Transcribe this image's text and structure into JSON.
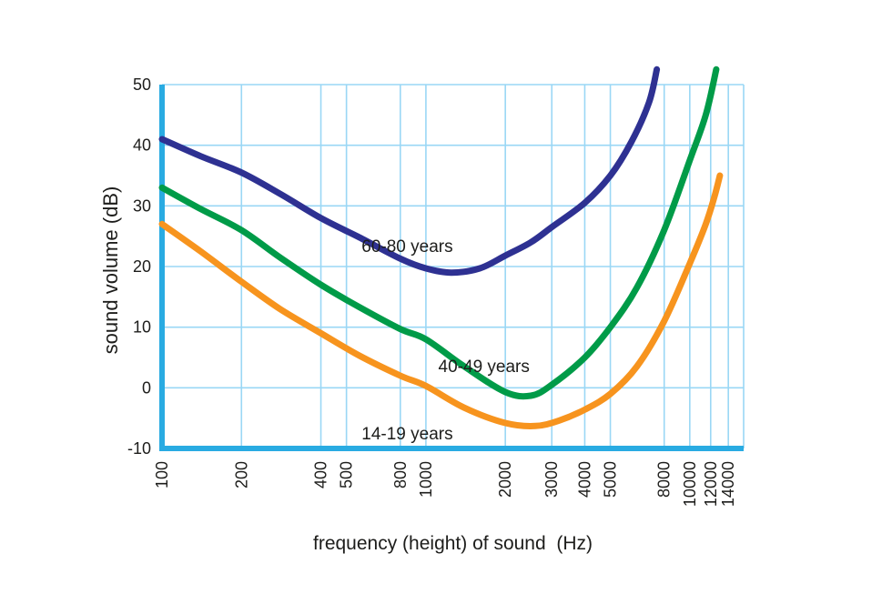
{
  "chart_data": {
    "type": "line",
    "title": "",
    "xlabel": "frequency (height) of sound  (Hz)",
    "ylabel": "sound volume (dB)",
    "x_scale": "log",
    "xlim": [
      100,
      16000
    ],
    "ylim": [
      -10,
      50
    ],
    "x_ticks": [
      100,
      200,
      400,
      500,
      800,
      1000,
      2000,
      3000,
      4000,
      5000,
      8000,
      10000,
      12000,
      14000
    ],
    "y_ticks": [
      50,
      40,
      30,
      20,
      10,
      0,
      -10
    ],
    "grid": true,
    "legend_position": "inline-curve-labels",
    "colors": {
      "axis": "#29ABE2",
      "grid": "#9AD7F5",
      "text": "#1D1D1B"
    },
    "series": [
      {
        "name": "60-80 years",
        "label": "60-80 years",
        "color": "#2E3192",
        "label_pos": [
          850,
          23.3
        ],
        "points": [
          [
            100,
            41
          ],
          [
            140,
            38.2
          ],
          [
            200,
            35.5
          ],
          [
            280,
            32
          ],
          [
            400,
            28
          ],
          [
            560,
            24.8
          ],
          [
            800,
            21.3
          ],
          [
            1000,
            19.7
          ],
          [
            1250,
            19
          ],
          [
            1600,
            19.7
          ],
          [
            2000,
            21.8
          ],
          [
            2500,
            24
          ],
          [
            3000,
            26.5
          ],
          [
            4000,
            30.5
          ],
          [
            5000,
            35
          ],
          [
            6000,
            40.5
          ],
          [
            7000,
            47
          ],
          [
            7500,
            52.5
          ]
        ]
      },
      {
        "name": "40-49 years",
        "label": "40-49 years",
        "color": "#009B48",
        "label_pos": [
          1660,
          3.5
        ],
        "points": [
          [
            100,
            33
          ],
          [
            140,
            29.5
          ],
          [
            200,
            26
          ],
          [
            280,
            21.5
          ],
          [
            400,
            17
          ],
          [
            560,
            13.3
          ],
          [
            800,
            9.7
          ],
          [
            1000,
            8
          ],
          [
            1400,
            3.5
          ],
          [
            2000,
            -0.7
          ],
          [
            2500,
            -1.3
          ],
          [
            3000,
            0.5
          ],
          [
            4000,
            5
          ],
          [
            5000,
            10
          ],
          [
            6300,
            16.5
          ],
          [
            8000,
            26
          ],
          [
            10000,
            37.5
          ],
          [
            11500,
            45
          ],
          [
            12600,
            52.5
          ]
        ]
      },
      {
        "name": "14-19 years",
        "label": "14-19 years",
        "color": "#F7941E",
        "label_pos": [
          850,
          -7.6
        ],
        "points": [
          [
            100,
            27
          ],
          [
            140,
            22.5
          ],
          [
            200,
            17.5
          ],
          [
            280,
            13
          ],
          [
            400,
            9
          ],
          [
            560,
            5.3
          ],
          [
            800,
            2
          ],
          [
            1000,
            0.3
          ],
          [
            1400,
            -3.3
          ],
          [
            2000,
            -5.8
          ],
          [
            2600,
            -6.3
          ],
          [
            3200,
            -5.4
          ],
          [
            4000,
            -3.6
          ],
          [
            5000,
            -1
          ],
          [
            6300,
            3.5
          ],
          [
            8000,
            11
          ],
          [
            10000,
            20.5
          ],
          [
            11500,
            27
          ],
          [
            12400,
            31.5
          ],
          [
            13000,
            35
          ]
        ]
      }
    ]
  }
}
